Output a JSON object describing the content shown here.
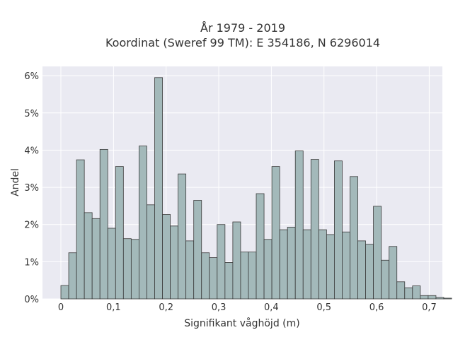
{
  "chart_data": {
    "type": "bar",
    "title_lines": [
      "År 1979 - 2019",
      "Koordinat (Sweref 99 TM): E 354186, N 6296014"
    ],
    "xlabel": "Signifikant våghöjd (m)",
    "ylabel": "Andel",
    "xlim": [
      -0.035,
      0.725
    ],
    "ylim": [
      0,
      0.0625
    ],
    "x_ticks": [
      0,
      0.1,
      0.2,
      0.3,
      0.4,
      0.5,
      0.6,
      0.7
    ],
    "x_tick_labels": [
      "0",
      "0,1",
      "0,2",
      "0,3",
      "0,4",
      "0,5",
      "0,6",
      "0,7"
    ],
    "y_ticks": [
      0,
      0.01,
      0.02,
      0.03,
      0.04,
      0.05,
      0.06
    ],
    "y_tick_labels": [
      "0%",
      "1%",
      "2%",
      "3%",
      "4%",
      "5%",
      "6%"
    ],
    "bin_start": 0.0,
    "bin_width": 0.01485,
    "values": [
      0.0036,
      0.0124,
      0.0374,
      0.0232,
      0.0216,
      0.0402,
      0.019,
      0.0356,
      0.0162,
      0.016,
      0.0411,
      0.0253,
      0.0595,
      0.0227,
      0.0196,
      0.0336,
      0.0156,
      0.0265,
      0.0124,
      0.0111,
      0.02,
      0.0098,
      0.0207,
      0.0126,
      0.0126,
      0.0283,
      0.016,
      0.0356,
      0.0186,
      0.0193,
      0.0398,
      0.0186,
      0.0375,
      0.0186,
      0.0173,
      0.0371,
      0.018,
      0.0329,
      0.0156,
      0.0147,
      0.0249,
      0.0104,
      0.0141,
      0.0046,
      0.003,
      0.0035,
      0.0009,
      0.0009,
      0.0004,
      0.0002
    ],
    "grid": true,
    "colors": {
      "plot_background": "#eaeaf2",
      "grid": "#ffffff",
      "bar_fill": "#a3b9ba",
      "bar_edge": "#3a3a3a",
      "text": "#333333"
    }
  }
}
